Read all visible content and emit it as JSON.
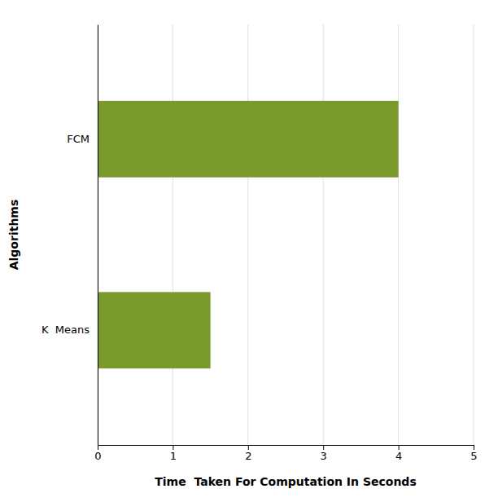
{
  "chart_data": {
    "type": "bar",
    "orientation": "horizontal",
    "categories": [
      "K  Means",
      "FCM"
    ],
    "values": [
      1.5,
      4.0
    ],
    "color": "#7a9a2e",
    "xlabel": "Time  Taken For Computation In Seconds",
    "ylabel": "Algorithms",
    "xlim": [
      0,
      5
    ],
    "xticks": [
      0,
      1,
      2,
      3,
      4,
      5
    ],
    "grid": true
  }
}
